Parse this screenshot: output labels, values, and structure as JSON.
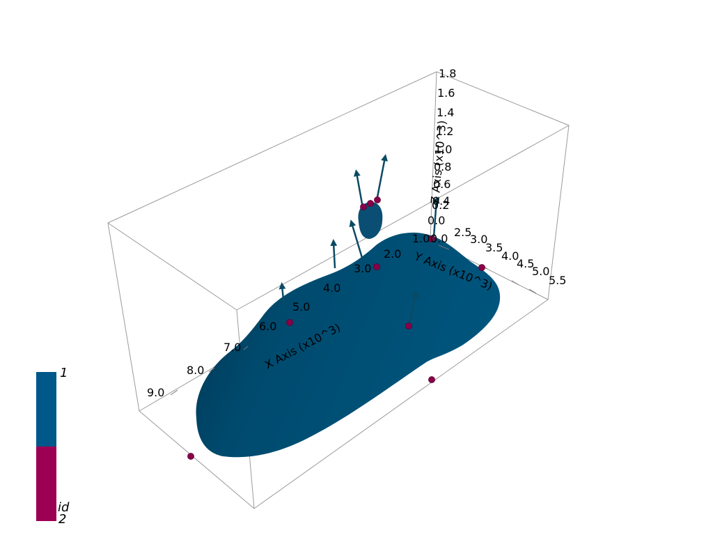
{
  "axes": {
    "x": {
      "title": "X Axis (x10^3)",
      "ticks": [
        "3.0",
        "4.0",
        "5.0",
        "6.0",
        "7.0",
        "8.0",
        "9.0"
      ]
    },
    "y": {
      "title": "Y Axis (x10^3)",
      "ticks": [
        "1.0",
        "2.0",
        "2.5",
        "3.0",
        "3.5",
        "4.0",
        "4.5",
        "5.0",
        "5.5"
      ]
    },
    "z": {
      "title": "Z Axis (x10^3)",
      "ticks": [
        "0.0",
        "0.2",
        "0.4",
        "0.6",
        "0.8",
        "1.0",
        "1.2",
        "1.4",
        "1.6",
        "1.8"
      ]
    },
    "extra_tick": "0.0"
  },
  "colorbar": {
    "title": "id",
    "max_label": "1",
    "min_label": "2",
    "colors": {
      "top": "#00578a",
      "bottom": "#9c0052"
    }
  },
  "colors": {
    "surface": "#004b6e",
    "arrows": "#0a4a63",
    "markers": "#8a0048",
    "box": "#9a9a9a"
  }
}
